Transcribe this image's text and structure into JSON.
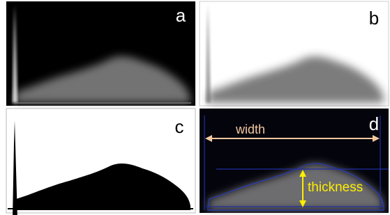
{
  "panels": [
    {
      "label": "a"
    },
    {
      "label": "b"
    },
    {
      "label": "c"
    },
    {
      "label": "d"
    }
  ],
  "annotations": {
    "width": "width",
    "thickness": "thickness"
  }
}
